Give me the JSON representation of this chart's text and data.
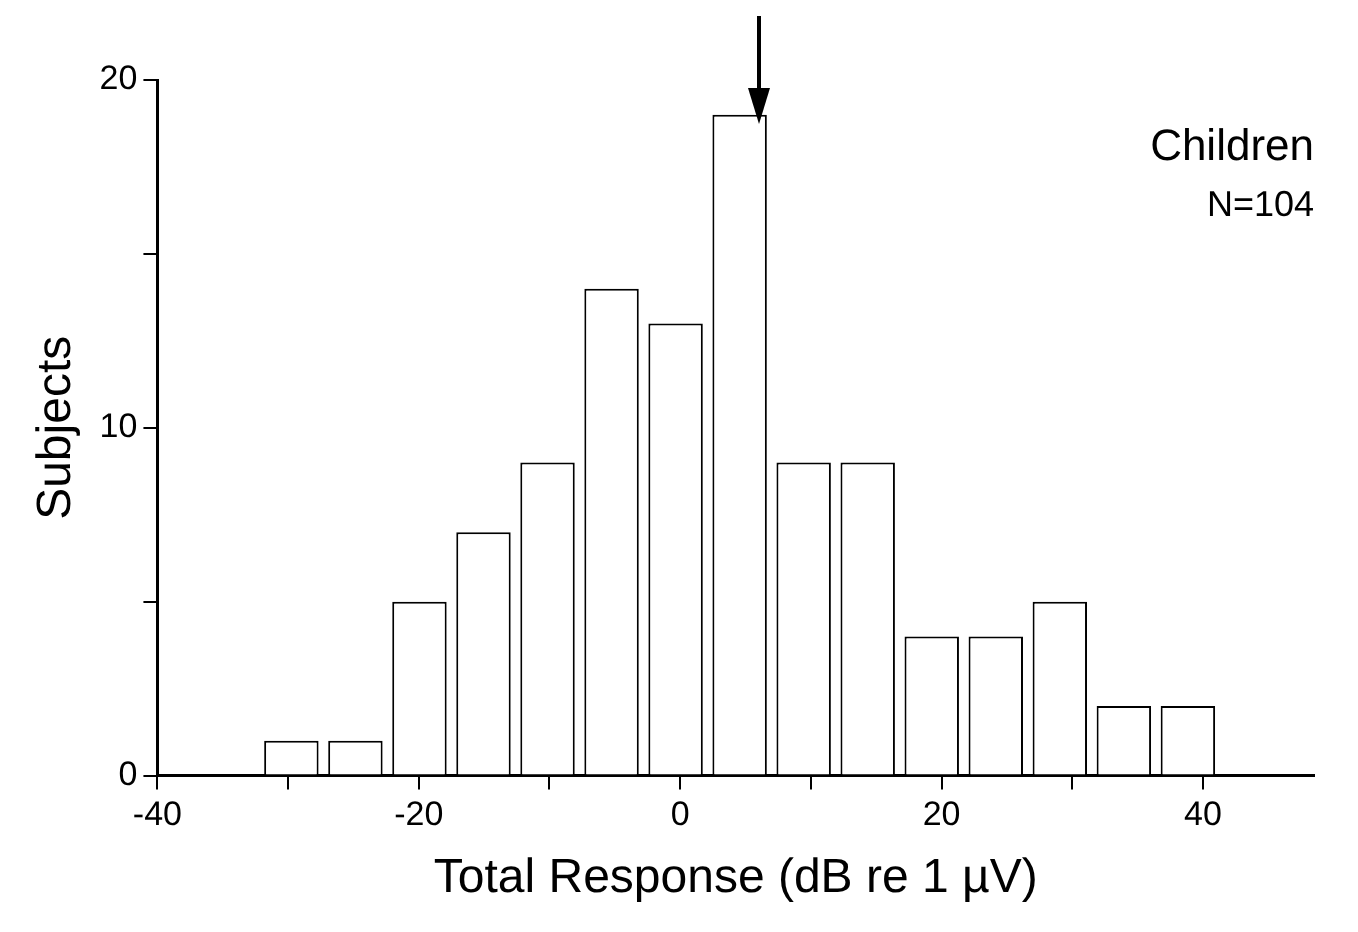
{
  "chart_data": {
    "type": "histogram",
    "xlabel": "Total Response (dB re 1 µV)",
    "ylabel": "Subjects",
    "bins": [
      -32.2,
      -27.3,
      -22.4,
      -17.5,
      -12.6,
      -7.7,
      -2.8,
      2.1,
      7,
      11.9,
      16.8,
      21.7,
      26.6,
      31.5,
      36.4,
      41.3
    ],
    "values": [
      1,
      1,
      5,
      7,
      9,
      14,
      13,
      19,
      9,
      9,
      4,
      4,
      5,
      2,
      2
    ],
    "color": "#ffffff",
    "xlim": [
      -40,
      48.5
    ],
    "xticks": [
      -40,
      {
        "value": -30,
        "label": null
      },
      -20,
      {
        "value": -10,
        "label": null
      },
      0,
      {
        "value": 10,
        "label": null
      },
      20,
      {
        "value": 30,
        "label": null
      },
      40
    ],
    "ylim": [
      0,
      20
    ],
    "yticks": [
      0,
      {
        "value": 5,
        "label": null
      },
      10,
      {
        "value": 15,
        "label": null
      },
      20
    ],
    "annotations": [
      "Children",
      "N=104"
    ],
    "grid": false,
    "legend": false
  }
}
